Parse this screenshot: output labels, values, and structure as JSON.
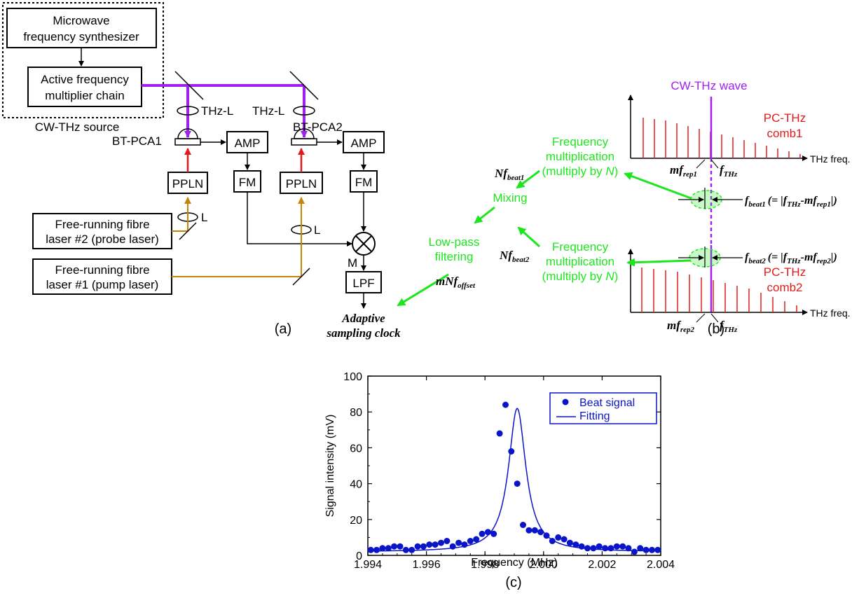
{
  "colors": {
    "black": "#000000",
    "purple": "#a020f0",
    "red": "#e21a1a",
    "orange": "#c8840a",
    "green": "#1ee61e",
    "blue": "#0a14c8"
  },
  "panel_a": {
    "synth_label_1": "Microwave",
    "synth_label_2": "frequency synthesizer",
    "mult_label_1": "Active frequency",
    "mult_label_2": "multiplier chain",
    "source_label": "CW-THz source",
    "thz_l1": "THz-L",
    "thz_l2": "THz-L",
    "pca1": "BT-PCA1",
    "pca2": "BT-PCA2",
    "amp1": "AMP",
    "amp2": "AMP",
    "fm1": "FM",
    "fm2": "FM",
    "ppln1": "PPLN",
    "ppln2": "PPLN",
    "lens1": "L",
    "lens2": "L",
    "mixer_label": "M",
    "lpf": "LPF",
    "laser2_1": "Free-running fibre",
    "laser2_2": "laser #2 (probe laser)",
    "laser1_1": "Free-running fibre",
    "laser1_2": "laser #1 (pump laser)",
    "output_1": "Adaptive",
    "output_2": "sampling clock",
    "caption": "(a)"
  },
  "panel_b": {
    "cw_label": "CW-THz wave",
    "comb1_1": "PC-THz",
    "comb1_2": "comb1",
    "comb2_1": "PC-THz",
    "comb2_2": "comb2",
    "freq_axis1": "THz freq.",
    "freq_axis2": "THz freq.",
    "mf_rep1": "mf",
    "mf_rep1_sub": "rep1",
    "mf_rep2": "mf",
    "mf_rep2_sub": "rep2",
    "f_thz": "f",
    "f_thz_sub": "THz",
    "fbeat1_a": "f",
    "fbeat1_sub": "beat1",
    "fbeat1_eq": "(= |f",
    "fbeat1_eq_sub": "THz",
    "fbeat1_eq2": "-mf",
    "fbeat1_eq2_sub": "rep1",
    "fbeat1_close": "|)",
    "fbeat2_a": "f",
    "fbeat2_sub": "beat2",
    "fbeat2_eq": "(= |f",
    "fbeat2_eq_sub": "THz",
    "fbeat2_eq2": "-mf",
    "fbeat2_eq2_sub": "rep2",
    "fbeat2_close": "|)",
    "fm1_1": "Frequency",
    "fm1_2": "multiplication",
    "fm1_3": "(multiply by ",
    "fm1_n": "N",
    "fm1_4": ")",
    "fm2_1": "Frequency",
    "fm2_2": "multiplication",
    "fm2_3": "(multiply by ",
    "fm2_n": "N",
    "fm2_4": ")",
    "mixing": "Mixing",
    "lpf_1": "Low-pass",
    "lpf_2": "filtering",
    "nf_beat1": "Nf",
    "nf_beat1_sub": "beat1",
    "nf_beat2": "Nf",
    "nf_beat2_sub": "beat2",
    "mnf_offset": "mNf",
    "mnf_offset_sub": "offset",
    "caption": "(b)"
  },
  "chart_data": {
    "type": "scatter",
    "title": "",
    "xlabel": "Frequency (MHz)",
    "ylabel": "Signal intensity (mV)",
    "xlim": [
      1.994,
      2.004
    ],
    "ylim": [
      0,
      100
    ],
    "xticks": [
      "1.994",
      "1.996",
      "1.998",
      "2.000",
      "2.002",
      "2.004"
    ],
    "yticks": [
      "0",
      "20",
      "40",
      "60",
      "80",
      "100"
    ],
    "legend_position": "top-right",
    "series": [
      {
        "name": "Beat signal",
        "kind": "markers",
        "x": [
          1.9941,
          1.9943,
          1.9945,
          1.9947,
          1.9949,
          1.9951,
          1.9953,
          1.9955,
          1.9957,
          1.9959,
          1.9961,
          1.9963,
          1.9965,
          1.9967,
          1.9969,
          1.9971,
          1.9973,
          1.9975,
          1.9977,
          1.9979,
          1.9981,
          1.9983,
          1.9985,
          1.9987,
          1.9989,
          1.9991,
          1.9993,
          1.9995,
          1.9997,
          1.9999,
          2.0001,
          2.0003,
          2.0005,
          2.0007,
          2.0009,
          2.0011,
          2.0013,
          2.0015,
          2.0017,
          2.0019,
          2.0021,
          2.0023,
          2.0025,
          2.0027,
          2.0029,
          2.0031,
          2.0033,
          2.0035,
          2.0037,
          2.0039
        ],
        "y": [
          3,
          3,
          4,
          4,
          5,
          5,
          3,
          3,
          5,
          5,
          6,
          6,
          7,
          8,
          5,
          7,
          6,
          8,
          9,
          12,
          13,
          12,
          68,
          84,
          58,
          40,
          17,
          14,
          14,
          13,
          11,
          8,
          10,
          9,
          7,
          6,
          5,
          4,
          4,
          5,
          4,
          4,
          5,
          5,
          4,
          2,
          4,
          3,
          3,
          3
        ]
      },
      {
        "name": "Fitting",
        "kind": "lorentzian-line",
        "center": 1.9991,
        "peak": 82,
        "half_width": 0.00036,
        "baseline": 2
      }
    ],
    "caption": "(c)"
  }
}
